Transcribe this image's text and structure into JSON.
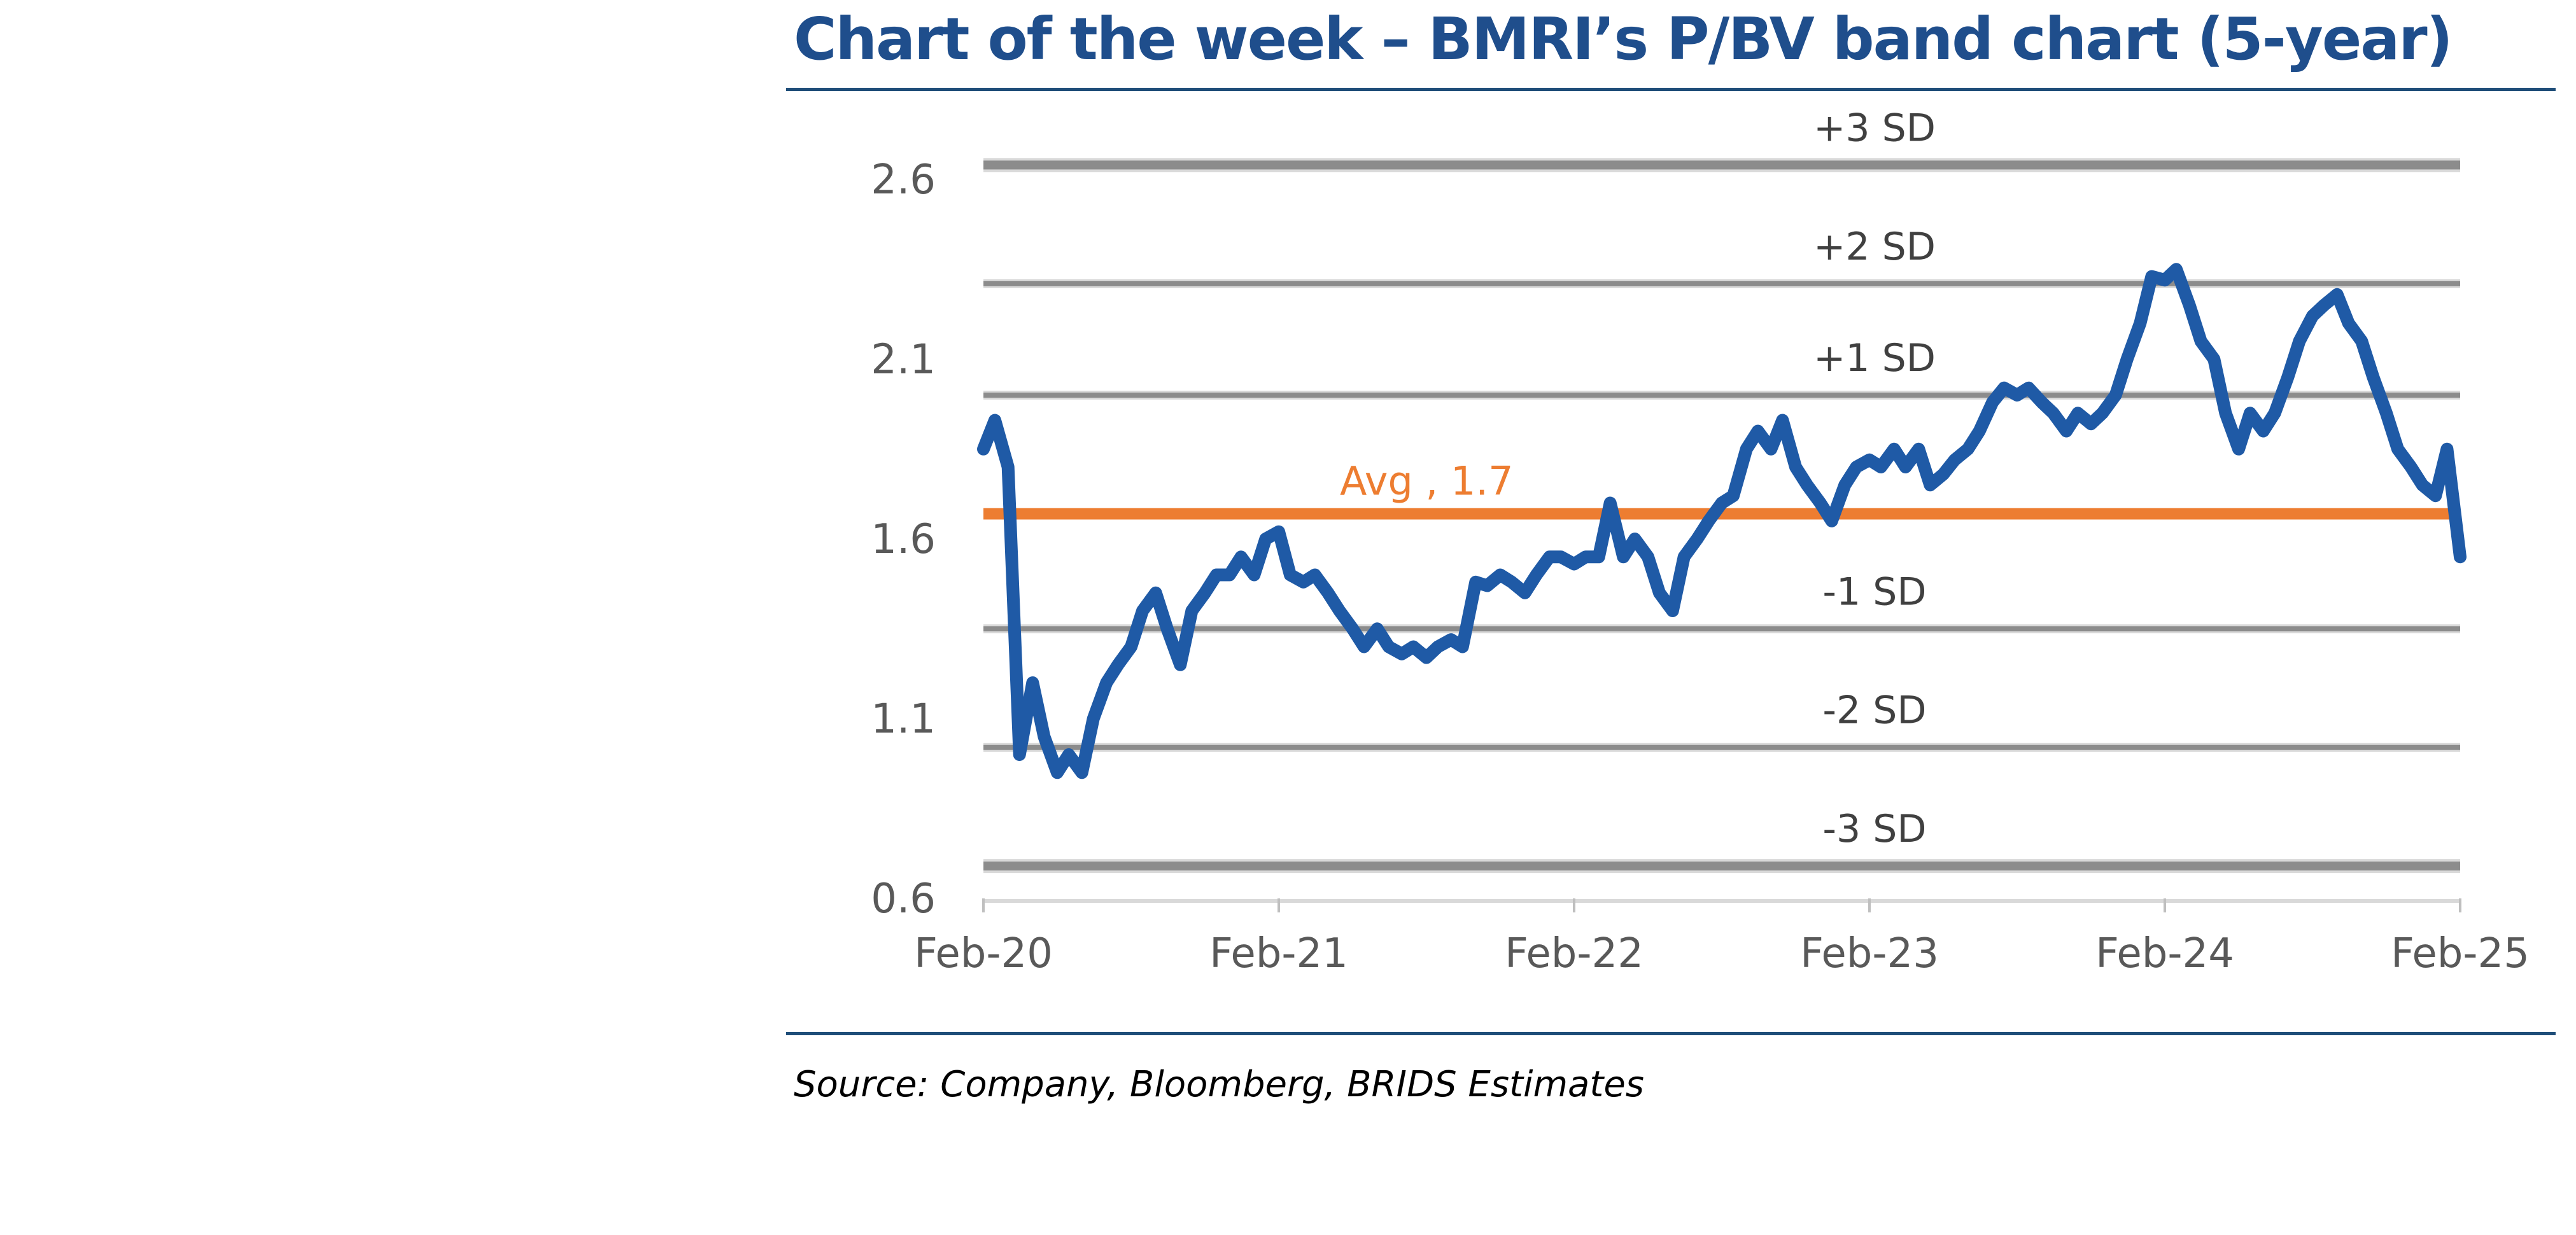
{
  "title": "Chart of the week – BMRI’s P/BV band chart (5-year)",
  "source": "Source: Company, Bloomberg, BRIDS Estimates",
  "colors": {
    "title": "#1F4E8C",
    "series": "#1F5AA6",
    "average": "#ED7D31",
    "bands": "#8C8C8C",
    "rule": "#1F4E79"
  },
  "chart_data": {
    "type": "line",
    "title": "",
    "xlabel": "",
    "ylabel": "",
    "ylim": [
      0.6,
      2.6
    ],
    "yticks": [
      "0.6",
      "1.1",
      "1.6",
      "2.1",
      "2.6"
    ],
    "xlim": [
      "2020-02",
      "2025-02"
    ],
    "xticks": [
      "Feb-20",
      "Feb-21",
      "Feb-22",
      "Feb-23",
      "Feb-24",
      "Feb-25"
    ],
    "grid": false,
    "legend": "none",
    "average": {
      "label": "Avg , 1.7",
      "value": 1.67
    },
    "bands": [
      {
        "label": "+3 SD",
        "value": 2.64
      },
      {
        "label": "+2 SD",
        "value": 2.31
      },
      {
        "label": "+1 SD",
        "value": 2.0
      },
      {
        "label": "-1 SD",
        "value": 1.35
      },
      {
        "label": "-2 SD",
        "value": 1.02
      },
      {
        "label": "-3 SD",
        "value": 0.69
      }
    ],
    "series": [
      {
        "x": [
          "2020-02",
          "2020-02-15",
          "2020-03",
          "2020-03-15",
          "2020-04",
          "2020-04-15",
          "2020-05",
          "2020-05-15",
          "2020-06",
          "2020-06-15",
          "2020-07",
          "2020-07-15",
          "2020-08",
          "2020-08-15",
          "2020-09",
          "2020-09-15",
          "2020-10",
          "2020-10-15",
          "2020-11",
          "2020-11-15",
          "2020-12",
          "2020-12-15",
          "2021-01",
          "2021-01-15",
          "2021-02",
          "2021-02-15",
          "2021-03",
          "2021-03-15",
          "2021-04",
          "2021-04-15",
          "2021-05",
          "2021-05-15",
          "2021-06",
          "2021-06-15",
          "2021-07",
          "2021-07-15",
          "2021-08",
          "2021-08-15",
          "2021-09",
          "2021-09-15",
          "2021-10",
          "2021-10-15",
          "2021-11",
          "2021-11-15",
          "2021-12",
          "2021-12-15",
          "2022-01",
          "2022-01-15",
          "2022-02",
          "2022-02-15",
          "2022-03",
          "2022-03-15",
          "2022-04",
          "2022-04-15",
          "2022-05",
          "2022-05-15",
          "2022-06",
          "2022-06-15",
          "2022-07",
          "2022-07-15",
          "2022-08",
          "2022-08-15",
          "2022-09",
          "2022-09-15",
          "2022-10",
          "2022-10-15",
          "2022-11",
          "2022-11-15",
          "2022-12",
          "2022-12-15",
          "2023-01",
          "2023-01-15",
          "2023-02",
          "2023-02-15",
          "2023-03",
          "2023-03-15",
          "2023-04",
          "2023-04-15",
          "2023-05",
          "2023-05-15",
          "2023-06",
          "2023-06-15",
          "2023-07",
          "2023-07-15",
          "2023-08",
          "2023-08-15",
          "2023-09",
          "2023-09-15",
          "2023-10",
          "2023-10-15",
          "2023-11",
          "2023-11-15",
          "2023-12",
          "2023-12-15",
          "2024-01",
          "2024-01-15",
          "2024-02",
          "2024-02-15",
          "2024-03",
          "2024-03-15",
          "2024-04",
          "2024-04-15",
          "2024-05",
          "2024-05-15",
          "2024-06",
          "2024-06-15",
          "2024-07",
          "2024-07-15",
          "2024-08",
          "2024-08-15",
          "2024-09",
          "2024-09-15",
          "2024-10",
          "2024-10-15",
          "2024-11",
          "2024-11-15",
          "2024-12",
          "2024-12-15",
          "2025-01",
          "2025-01-15",
          "2025-02"
        ],
        "y": [
          1.85,
          1.93,
          1.8,
          1.0,
          1.2,
          1.05,
          0.95,
          1.0,
          0.95,
          1.1,
          1.2,
          1.25,
          1.3,
          1.4,
          1.45,
          1.35,
          1.25,
          1.4,
          1.45,
          1.5,
          1.5,
          1.55,
          1.5,
          1.6,
          1.62,
          1.5,
          1.48,
          1.5,
          1.45,
          1.4,
          1.35,
          1.3,
          1.35,
          1.3,
          1.28,
          1.3,
          1.27,
          1.3,
          1.32,
          1.3,
          1.48,
          1.47,
          1.5,
          1.48,
          1.45,
          1.5,
          1.55,
          1.55,
          1.53,
          1.55,
          1.55,
          1.7,
          1.55,
          1.6,
          1.55,
          1.45,
          1.4,
          1.55,
          1.6,
          1.65,
          1.7,
          1.72,
          1.85,
          1.9,
          1.85,
          1.93,
          1.8,
          1.75,
          1.7,
          1.65,
          1.75,
          1.8,
          1.82,
          1.8,
          1.85,
          1.8,
          1.85,
          1.75,
          1.78,
          1.82,
          1.85,
          1.9,
          1.98,
          2.02,
          2.0,
          2.02,
          1.98,
          1.95,
          1.9,
          1.95,
          1.92,
          1.95,
          2.0,
          2.1,
          2.2,
          2.33,
          2.32,
          2.35,
          2.25,
          2.15,
          2.1,
          1.95,
          1.85,
          1.95,
          1.9,
          1.95,
          2.05,
          2.15,
          2.22,
          2.25,
          2.28,
          2.2,
          2.15,
          2.05,
          1.95,
          1.85,
          1.8,
          1.75,
          1.72,
          1.85,
          1.55
        ]
      }
    ]
  }
}
